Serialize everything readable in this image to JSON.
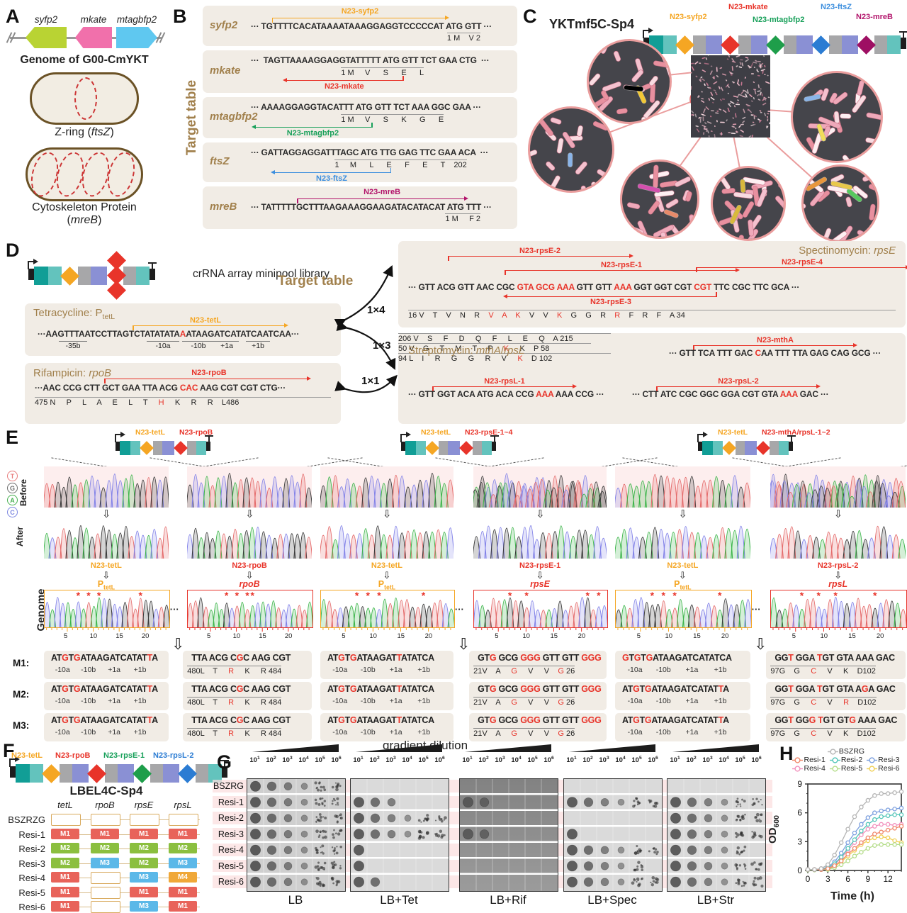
{
  "A": {
    "label": "A",
    "genes": [
      {
        "name": "syfp2",
        "color": "#b9d333"
      },
      {
        "name": "mkate",
        "color": "#f170ab"
      },
      {
        "name": "mtagbfp2",
        "color": "#5fc8f0"
      }
    ],
    "genome": "Genome of G00-CmYKT",
    "zring": "Z-ring (*ftsZ*)",
    "cyto1": "Cytoskeleton Protein",
    "cyto2": "(*mreB*)"
  },
  "B": {
    "label": "B",
    "side": "Target table",
    "rows": [
      {
        "gene": "syfp2",
        "tag": "N23-syfp2",
        "color": "#f5a623",
        "mode": "above",
        "seq": "··· TGTTTTCACATAAAATAAAGGAGGTCCCCCAT ATG GTT ···",
        "aa": "1 M    V 2"
      },
      {
        "gene": "mkate",
        "tag": "N23-mkate",
        "color": "#e8342a",
        "mode": "below",
        "seq": "···  TAGTTAAAAGGAGGTATTTTT ATG GTT TCT GAA CTG  ···",
        "aa": "1 M     V      S      E      L"
      },
      {
        "gene": "mtagbfp2",
        "tag": "N23-mtagbfp2",
        "color": "#18a05a",
        "mode": "below",
        "seq": "··· AAAAGGAGGTACATTT ATG GTT TCT AAA GGC GAA ···",
        "aa": "1 M     V      S      K      G      E"
      },
      {
        "gene": "ftsZ",
        "tag": "N23-ftsZ",
        "color": "#3b8ede",
        "mode": "below",
        "seq": "··· GATTAGGAGGATTTAGC ATG TTG GAG TTC GAA ACA  ···",
        "aa": "1     M      L      E      F      E      T    202"
      },
      {
        "gene": "mreB",
        "tag": "N23-mreB",
        "color": "#b2146b",
        "mode": "above",
        "seq": "··· TATTTTTGCTTTAAGAAAGGAAGATACATACAT ATG TTT ···",
        "aa": "1 M     F 2"
      }
    ]
  },
  "C": {
    "label": "C",
    "title": "YKTmf5C-Sp4",
    "tags": [
      {
        "t": "N23-syfp2",
        "c": "#f5a623"
      },
      {
        "t": "N23-mkate",
        "c": "#e8342a"
      },
      {
        "t": "N23-mtagbfp2",
        "c": "#18a05a"
      },
      {
        "t": "N23-ftsZ",
        "c": "#3b8ede"
      },
      {
        "t": "N23-mreB",
        "c": "#b2146b"
      }
    ]
  },
  "D": {
    "label": "D",
    "library": "crRNA array minipool library",
    "target_table": "Target table",
    "ratios": [
      "1×4",
      "1×3",
      "1×1"
    ],
    "tet": {
      "title": "Tetracycline: P_tetL",
      "tag": "N23-tetL",
      "color": "#f5a623",
      "seq": "···AAGTTTAATCCTTAGTCTATATATA«A»ATAAGATCATATCAATCAA···",
      "ann": [
        "-35b",
        "-10a",
        "-10b",
        "+1a",
        "+1b"
      ]
    },
    "rif": {
      "title": "Rifampicin: *rpoB*",
      "tag": "N23-rpoB",
      "color": "#e8342a",
      "seq": "···AAC CCG CTT GCT GAA TTA ACG «CAC» AAG CGT CGT CTG···",
      "aa": "475 N     P     L     A     E     L     T     «H»     K     R     R    L486"
    },
    "spec": {
      "title": "Spectinomycin: *rpsE*",
      "tags_top": [
        "N23-rpsE-2",
        "N23-rpsE-1",
        "N23-rpsE-4"
      ],
      "tag_bottom": "N23-rpsE-3",
      "color": "#e8342a",
      "seq": "··· GTT ACG GTT AAC CGC «GTA GCG AAA» GTT GTT «AAA» GGT GGT CGT «CGT» TTC CGC TTC GCA ···",
      "aa": "16 V    T    V    N    R    «V»    «A»    «K»    V    V    «K»    G    G    R    «R»    F    R    F    A 34"
    },
    "str": {
      "title": "Streptomycin: *mthA*/*rpsL*",
      "color": "#e8342a",
      "mthA": {
        "tag": "N23-mthA",
        "seq": "··· GTT TCA TTT GAC «C»AA TTT TTA GAG CAG GCG ···",
        "aa": "206 V    S     F     D     Q     F     L     E     Q    A 215"
      },
      "rpsL1": {
        "tag": "N23-rpsL-1",
        "seq": "··· GTT GGT ACA ATG ACA CCG «AAA» AAA CCG ···",
        "aa": "50 V    G     T     M     T     P     «K»     K    P 58"
      },
      "rpsL2": {
        "tag": "N23-rpsL-2",
        "seq": "··· CTT ATC CGC GGC GGA CGT GTA «AAA» GAC ···",
        "aa": "94 L    I     R     G     G     R     V     «K»    D 102"
      }
    }
  },
  "E": {
    "label": "E",
    "legend": [
      {
        "l": "T",
        "c": "#e87d7d"
      },
      {
        "l": "G",
        "c": "#6e6e6e"
      },
      {
        "l": "A",
        "c": "#46b050"
      },
      {
        "l": "C",
        "c": "#7b86e0"
      }
    ],
    "row_labels": [
      "Before",
      "After",
      "Genome"
    ],
    "axis_ticks": [
      5,
      10,
      15,
      20
    ],
    "groups": [
      {
        "tagL": "N23-tetL",
        "tagLc": "#f5a623",
        "tagR": "N23-rpoB",
        "tagRc": "#e8342a",
        "genomeL": {
          "tag": "N23-tetL",
          "gene": "P_tetL",
          "c": "#f5a623",
          "stars": [
            6,
            8,
            10,
            18
          ]
        },
        "genomeR": {
          "tag": "N23-rpoB",
          "gene": "*rpoB*",
          "c": "#e8342a",
          "stars": [
            7,
            9,
            11,
            12
          ]
        },
        "m": [
          {
            "seqA": "AT«G»T«G»ATAAGATCATAT«T»A",
            "annA": [
              "-10a",
              "-10b",
              "+1a",
              "+1b"
            ],
            "seqB": "TTA ACG C«G»C AAG CGT",
            "aaB": "480L    T     «R»     K     R 484"
          },
          {
            "seqA": "AT«G»T«G»ATAAGATCATAT«T»A",
            "annA": [
              "-10a",
              "-10b",
              "+1a",
              "+1b"
            ],
            "seqB": "TTA ACG C«G»C AAG CGT",
            "aaB": "480L    T     «R»     K     R 484"
          },
          {
            "seqA": "AT«G»T«G»ATAAGATCATAT«T»A",
            "annA": [
              "-10a",
              "-10b",
              "+1a",
              "+1b"
            ],
            "seqB": "TTA ACG C«G»C AAG CGT",
            "aaB": "480L    T     «R»     K     R 484"
          }
        ]
      },
      {
        "tagL": "N23-tetL",
        "tagLc": "#f5a623",
        "tagR": "N23-rpsE-1~4",
        "tagRc": "#e8342a",
        "genomeL": {
          "tag": "N23-tetL",
          "gene": "P_tetL",
          "c": "#f5a623",
          "stars": [
            6,
            8,
            10,
            18
          ]
        },
        "genomeR": {
          "tag": "N23-rpsE-1",
          "gene": "*rpsE*",
          "c": "#e8342a",
          "stars": [
            6,
            9,
            20,
            22
          ]
        },
        "m": [
          {
            "seqA": "AT«G»T«G»ATAAGAT«T»ATATCA",
            "annA": [
              "-10a",
              "-10b",
              "+1a",
              "+1b"
            ],
            "seqB": "GT«G» GCG «GGG» GTT GTT «GGG»",
            "aaB": "21V    A     «G»     V     V    «G» 26"
          },
          {
            "seqA": "AT«G»T«G»ATAAGAT«T»ATATCA",
            "annA": [
              "-10a",
              "-10b",
              "+1a",
              "+1b"
            ],
            "seqB": "GT«G» GCG «GGG» GTT GTT «GGG»",
            "aaB": "21V    A     «G»     V     V    «G» 26"
          },
          {
            "seqA": "AT«G»T«G»ATAAGAT«T»ATATCA",
            "annA": [
              "-10a",
              "-10b",
              "+1a",
              "+1b"
            ],
            "seqB": "GT«G» GCG «GGG» GTT GTT «GGG»",
            "aaB": "21V    A     «G»     V     V    «G» 26"
          }
        ]
      },
      {
        "tagL": "N23-tetL",
        "tagLc": "#f5a623",
        "tagR": "N23-mthA/rpsL-1~2",
        "tagRc": "#e8342a",
        "genomeL": {
          "tag": "N23-tetL",
          "gene": "P_tetL",
          "c": "#f5a623",
          "stars": [
            6,
            8,
            10,
            18
          ]
        },
        "genomeR": {
          "tag": "N23-rpsL-2",
          "gene": "*rpsL*",
          "c": "#e8342a",
          "stars": [
            5,
            8,
            11,
            18
          ]
        },
        "m": [
          {
            "seqA": "«G»T«G»T«G»ATAAGATCATATCA",
            "annA": [
              "-10a",
              "-10b",
              "+1a",
              "+1b"
            ],
            "seqB": "GG«T» GGA «T»GT GTA AAA GAC",
            "aaB": "97G    G     «C»     V     K    D102"
          },
          {
            "seqA": "AT«G»T«G»ATAAGATCATAT«T»A",
            "annA": [
              "-10a",
              "-10b",
              "+1a",
              "+1b"
            ],
            "seqB": "GG«T» GGA «T»GT GTA A«G»A GAC",
            "aaB": "97G    G     «C»     V     «R»    D102"
          },
          {
            "seqA": "AT«G»T«G»ATAAGATCATAT«T»A",
            "annA": [
              "-10a",
              "-10b",
              "+1a",
              "+1b"
            ],
            "seqB": "GG«T» GG«G» «T»GT GT«G» AAA GAC",
            "aaB": "97G    G     «C»     V     K    D102"
          }
        ]
      }
    ]
  },
  "F": {
    "label": "F",
    "title": "LBEL4C-Sp4",
    "tags": [
      {
        "t": "N23-tetL",
        "c": "#f5a623"
      },
      {
        "t": "N23-rpoB",
        "c": "#e8342a"
      },
      {
        "t": "N23-rpsE-1",
        "c": "#18a05a"
      },
      {
        "t": "N23-rpsL-2",
        "c": "#2b7cd3"
      }
    ],
    "cols": [
      "tetL",
      "rpoB",
      "rpsE",
      "rpsL"
    ],
    "cell_colors": {
      "M1": "#e8635a",
      "M2": "#8bbf3f",
      "M3": "#5bb8e8",
      "M4": "#f0a838"
    },
    "rows": [
      {
        "name": "BSZRZG",
        "cells": [
          "",
          "",
          "",
          ""
        ]
      },
      {
        "name": "Resi-1",
        "cells": [
          "M1",
          "M1",
          "M1",
          "M1"
        ]
      },
      {
        "name": "Resi-2",
        "cells": [
          "M2",
          "M2",
          "M2",
          "M2"
        ]
      },
      {
        "name": "Resi-3",
        "cells": [
          "M2",
          "M3",
          "M2",
          "M3"
        ]
      },
      {
        "name": "Resi-4",
        "cells": [
          "M1",
          "",
          "M3",
          "M4"
        ]
      },
      {
        "name": "Resi-5",
        "cells": [
          "M1",
          "",
          "M1",
          "M1"
        ]
      },
      {
        "name": "Resi-6",
        "cells": [
          "M1",
          "",
          "M3",
          "M1"
        ]
      }
    ]
  },
  "G": {
    "label": "G",
    "title": "gradient dilution",
    "dilution_exponents": [
      1,
      2,
      3,
      4,
      5,
      6
    ],
    "strains": [
      "BSZRG",
      "Resi-1",
      "Resi-2",
      "Resi-3",
      "Resi-4",
      "Resi-5",
      "Resi-6"
    ],
    "plates": [
      {
        "name": "LB",
        "shade": "light",
        "spots": [
          6,
          6,
          6,
          6,
          6,
          6,
          6
        ]
      },
      {
        "name": "LB+Tet",
        "shade": "light",
        "spots": [
          0,
          3,
          6,
          6,
          1,
          1,
          2
        ]
      },
      {
        "name": "LB+Rif",
        "shade": "dark",
        "spots": [
          0,
          2,
          0,
          2,
          0,
          0,
          0
        ]
      },
      {
        "name": "LB+Spec",
        "shade": "light",
        "spots": [
          0,
          6,
          0,
          1,
          6,
          5,
          6
        ]
      },
      {
        "name": "LB+Str",
        "shade": "light",
        "spots": [
          0,
          6,
          6,
          6,
          5,
          6,
          6
        ]
      }
    ]
  },
  "H": {
    "label": "H",
    "ylabel": "OD_600",
    "xlabel": "Time (h)",
    "legend_rows": [
      [
        "BSZRG"
      ],
      [
        "Resi-1",
        "Resi-2",
        "Resi-3"
      ],
      [
        "Resi-4",
        "Resi-5",
        "Resi-6"
      ]
    ],
    "chart_data": {
      "type": "line",
      "x": [
        0,
        1,
        2,
        3,
        4,
        5,
        6,
        7,
        8,
        9,
        10,
        11,
        12,
        13,
        14
      ],
      "ylim": [
        0,
        9
      ],
      "yticks": [
        0,
        3,
        6,
        9
      ],
      "xticks": [
        0,
        3,
        6,
        9,
        12
      ],
      "series": [
        {
          "name": "BSZRG",
          "color": "#b5b5b5",
          "values": [
            0.1,
            0.1,
            0.2,
            0.6,
            1.6,
            2.9,
            4.3,
            5.6,
            6.6,
            7.3,
            7.8,
            8.0,
            8.0,
            8.1,
            8.2
          ]
        },
        {
          "name": "Resi-1",
          "color": "#f0876a",
          "values": [
            0.1,
            0.1,
            0.1,
            0.2,
            0.5,
            1.0,
            1.7,
            2.3,
            2.9,
            3.4,
            3.8,
            4.0,
            4.2,
            4.4,
            4.6
          ]
        },
        {
          "name": "Resi-2",
          "color": "#52c5b8",
          "values": [
            0.1,
            0.1,
            0.1,
            0.3,
            0.7,
            1.4,
            2.3,
            3.2,
            4.1,
            4.8,
            5.3,
            5.6,
            5.7,
            5.8,
            5.8
          ]
        },
        {
          "name": "Resi-3",
          "color": "#7a9ede",
          "values": [
            0.1,
            0.1,
            0.15,
            0.35,
            0.9,
            1.8,
            2.9,
            3.9,
            4.8,
            5.5,
            6.0,
            6.2,
            6.3,
            6.4,
            6.5
          ]
        },
        {
          "name": "Resi-4",
          "color": "#f291bd",
          "values": [
            0.1,
            0.1,
            0.1,
            0.25,
            0.6,
            1.3,
            2.1,
            2.9,
            3.7,
            4.3,
            4.6,
            4.8,
            4.8,
            4.7,
            4.8
          ]
        },
        {
          "name": "Resi-5",
          "color": "#b5dd8a",
          "values": [
            0.05,
            0.05,
            0.1,
            0.1,
            0.3,
            0.6,
            1.0,
            1.5,
            1.9,
            2.3,
            2.6,
            2.7,
            2.7,
            2.7,
            2.7
          ]
        },
        {
          "name": "Resi-6",
          "color": "#f0cf55",
          "values": [
            0.1,
            0.1,
            0.1,
            0.15,
            0.4,
            0.9,
            1.5,
            2.1,
            2.7,
            3.1,
            3.4,
            3.5,
            3.4,
            3.1,
            2.9
          ]
        }
      ]
    }
  }
}
